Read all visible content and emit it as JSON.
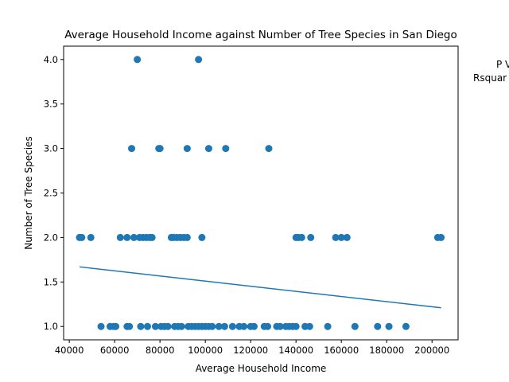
{
  "chart_data": {
    "type": "scatter",
    "title": "Average Household Income against Number of Tree Species in San Diego",
    "xlabel": "Average Household Income",
    "ylabel": "Number of Tree Species",
    "xlim": [
      37500,
      211500
    ],
    "ylim": [
      0.85,
      4.15
    ],
    "xticks": [
      40000,
      60000,
      80000,
      100000,
      120000,
      140000,
      160000,
      180000,
      200000
    ],
    "xtick_labels": [
      "40000",
      "60000",
      "80000",
      "100000",
      "120000",
      "140000",
      "160000",
      "180000",
      "200000"
    ],
    "yticks": [
      1.0,
      1.5,
      2.0,
      2.5,
      3.0,
      3.5,
      4.0
    ],
    "ytick_labels": [
      "1.0",
      "1.5",
      "2.0",
      "2.5",
      "3.0",
      "3.5",
      "4.0"
    ],
    "grid": false,
    "point_color": "#1f77b4",
    "line_color": "#1f77b4",
    "annotations": [
      "P V",
      "Rsquar"
    ],
    "points": [
      {
        "x": 44500,
        "y": 2
      },
      {
        "x": 45500,
        "y": 2
      },
      {
        "x": 49500,
        "y": 2
      },
      {
        "x": 62500,
        "y": 2
      },
      {
        "x": 65500,
        "y": 2
      },
      {
        "x": 68500,
        "y": 2
      },
      {
        "x": 71000,
        "y": 2
      },
      {
        "x": 72500,
        "y": 2
      },
      {
        "x": 74000,
        "y": 2
      },
      {
        "x": 75500,
        "y": 2
      },
      {
        "x": 76500,
        "y": 2
      },
      {
        "x": 85000,
        "y": 2
      },
      {
        "x": 86000,
        "y": 2
      },
      {
        "x": 87500,
        "y": 2
      },
      {
        "x": 89000,
        "y": 2
      },
      {
        "x": 90500,
        "y": 2
      },
      {
        "x": 92000,
        "y": 2
      },
      {
        "x": 98500,
        "y": 2
      },
      {
        "x": 140000,
        "y": 2
      },
      {
        "x": 141000,
        "y": 2
      },
      {
        "x": 142500,
        "y": 2
      },
      {
        "x": 146500,
        "y": 2
      },
      {
        "x": 157500,
        "y": 2
      },
      {
        "x": 160000,
        "y": 2
      },
      {
        "x": 162500,
        "y": 2
      },
      {
        "x": 202500,
        "y": 2
      },
      {
        "x": 204000,
        "y": 2
      },
      {
        "x": 67500,
        "y": 3
      },
      {
        "x": 79500,
        "y": 3
      },
      {
        "x": 80000,
        "y": 3
      },
      {
        "x": 92000,
        "y": 3
      },
      {
        "x": 101500,
        "y": 3
      },
      {
        "x": 109000,
        "y": 3
      },
      {
        "x": 128000,
        "y": 3
      },
      {
        "x": 70000,
        "y": 4
      },
      {
        "x": 97000,
        "y": 4
      },
      {
        "x": 54000,
        "y": 1
      },
      {
        "x": 58000,
        "y": 1
      },
      {
        "x": 59500,
        "y": 1
      },
      {
        "x": 60500,
        "y": 1
      },
      {
        "x": 65500,
        "y": 1
      },
      {
        "x": 66500,
        "y": 1
      },
      {
        "x": 71500,
        "y": 1
      },
      {
        "x": 74500,
        "y": 1
      },
      {
        "x": 78000,
        "y": 1
      },
      {
        "x": 80500,
        "y": 1
      },
      {
        "x": 82000,
        "y": 1
      },
      {
        "x": 83500,
        "y": 1
      },
      {
        "x": 86500,
        "y": 1
      },
      {
        "x": 88000,
        "y": 1
      },
      {
        "x": 89500,
        "y": 1
      },
      {
        "x": 92500,
        "y": 1
      },
      {
        "x": 94000,
        "y": 1
      },
      {
        "x": 95500,
        "y": 1
      },
      {
        "x": 97000,
        "y": 1
      },
      {
        "x": 98500,
        "y": 1
      },
      {
        "x": 100000,
        "y": 1
      },
      {
        "x": 101500,
        "y": 1
      },
      {
        "x": 103000,
        "y": 1
      },
      {
        "x": 106000,
        "y": 1
      },
      {
        "x": 108500,
        "y": 1
      },
      {
        "x": 112000,
        "y": 1
      },
      {
        "x": 115000,
        "y": 1
      },
      {
        "x": 117000,
        "y": 1
      },
      {
        "x": 120000,
        "y": 1
      },
      {
        "x": 121500,
        "y": 1
      },
      {
        "x": 126000,
        "y": 1
      },
      {
        "x": 127500,
        "y": 1
      },
      {
        "x": 131500,
        "y": 1
      },
      {
        "x": 133000,
        "y": 1
      },
      {
        "x": 135500,
        "y": 1
      },
      {
        "x": 137000,
        "y": 1
      },
      {
        "x": 138500,
        "y": 1
      },
      {
        "x": 140000,
        "y": 1
      },
      {
        "x": 144000,
        "y": 1
      },
      {
        "x": 146000,
        "y": 1
      },
      {
        "x": 154000,
        "y": 1
      },
      {
        "x": 166000,
        "y": 1
      },
      {
        "x": 176000,
        "y": 1
      },
      {
        "x": 181000,
        "y": 1
      },
      {
        "x": 188500,
        "y": 1
      }
    ],
    "trendline": {
      "x": [
        44500,
        204000
      ],
      "y": [
        1.67,
        1.21
      ]
    }
  }
}
